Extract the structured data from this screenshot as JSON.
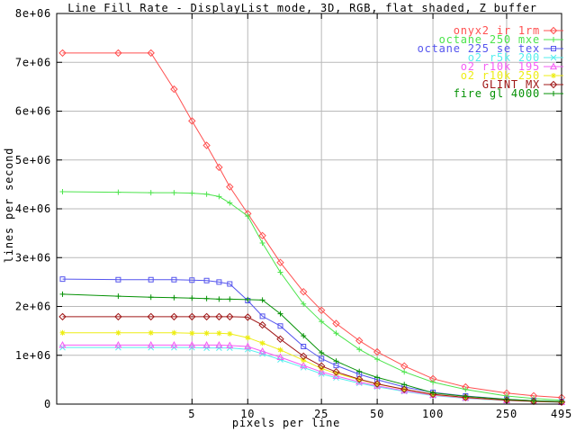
{
  "chart_data": {
    "type": "line",
    "title": "Line Fill Rate - DisplayList mode, 3D, RGB, flat shaded, Z buffer",
    "xlabel": "pixels per line",
    "ylabel": "lines per second",
    "x_scale": "log",
    "grid": true,
    "legend_position": "top-right",
    "x_range": [
      0.93,
      495
    ],
    "y_range": [
      0,
      8000000
    ],
    "x_ticks": [
      {
        "value": 5,
        "label": "5"
      },
      {
        "value": 10,
        "label": "10"
      },
      {
        "value": 25,
        "label": "25"
      },
      {
        "value": 50,
        "label": "50"
      },
      {
        "value": 100,
        "label": "100"
      },
      {
        "value": 250,
        "label": "250"
      },
      {
        "value": 495,
        "label": "495"
      }
    ],
    "y_ticks": [
      {
        "value": 0,
        "label": "0"
      },
      {
        "value": 1000000,
        "label": "1e+06"
      },
      {
        "value": 2000000,
        "label": "2e+06"
      },
      {
        "value": 3000000,
        "label": "3e+06"
      },
      {
        "value": 4000000,
        "label": "4e+06"
      },
      {
        "value": 5000000,
        "label": "5e+06"
      },
      {
        "value": 6000000,
        "label": "6e+06"
      },
      {
        "value": 7000000,
        "label": "7e+06"
      },
      {
        "value": 8000000,
        "label": "8e+06"
      }
    ],
    "x": [
      1,
      2,
      3,
      4,
      5,
      6,
      7,
      8,
      10,
      12,
      15,
      20,
      25,
      30,
      40,
      50,
      70,
      100,
      150,
      250,
      350,
      495
    ],
    "series": [
      {
        "name": "onyx2 ir 1rm",
        "color": "#ff5050",
        "marker": "diamond",
        "values": [
          7190000,
          7190000,
          7190000,
          6450000,
          5800000,
          5300000,
          4850000,
          4450000,
          3900000,
          3450000,
          2900000,
          2300000,
          1920000,
          1650000,
          1300000,
          1070000,
          780000,
          520000,
          350000,
          225000,
          170000,
          135000
        ]
      },
      {
        "name": "octane 250 mxe",
        "color": "#4ce44c",
        "marker": "plus",
        "values": [
          4350000,
          4340000,
          4330000,
          4330000,
          4320000,
          4300000,
          4250000,
          4120000,
          3850000,
          3300000,
          2700000,
          2050000,
          1690000,
          1450000,
          1120000,
          920000,
          660000,
          450000,
          300000,
          165000,
          115000,
          80000
        ]
      },
      {
        "name": "octane 225 se tex",
        "color": "#5555ee",
        "marker": "square",
        "values": [
          2560000,
          2550000,
          2550000,
          2550000,
          2540000,
          2530000,
          2500000,
          2460000,
          2120000,
          1800000,
          1600000,
          1180000,
          930000,
          790000,
          610000,
          500000,
          350000,
          240000,
          165000,
          100000,
          70000,
          50000
        ]
      },
      {
        "name": "o2 r5k 200",
        "color": "#55eeee",
        "marker": "cross",
        "values": [
          1160000,
          1160000,
          1160000,
          1160000,
          1160000,
          1150000,
          1150000,
          1150000,
          1120000,
          1030000,
          910000,
          750000,
          620000,
          540000,
          430000,
          355000,
          260000,
          175000,
          118000,
          72000,
          50000,
          36000
        ]
      },
      {
        "name": "o2 r10k 195",
        "color": "#f55cf5",
        "marker": "triangle",
        "values": [
          1210000,
          1210000,
          1210000,
          1210000,
          1210000,
          1210000,
          1210000,
          1200000,
          1180000,
          1080000,
          960000,
          790000,
          660000,
          575000,
          455000,
          375000,
          275000,
          185000,
          125000,
          76000,
          53000,
          38000
        ]
      },
      {
        "name": "o2 r10k 250",
        "color": "#eded15",
        "marker": "asterisk",
        "values": [
          1460000,
          1460000,
          1460000,
          1460000,
          1450000,
          1450000,
          1450000,
          1440000,
          1360000,
          1250000,
          1110000,
          900000,
          730000,
          630000,
          500000,
          410000,
          300000,
          195000,
          132000,
          80000,
          56000,
          42000
        ]
      },
      {
        "name": "GLINT MX",
        "color": "#a01818",
        "marker": "diamond",
        "values": [
          1790000,
          1790000,
          1790000,
          1790000,
          1790000,
          1790000,
          1790000,
          1790000,
          1780000,
          1620000,
          1330000,
          980000,
          780000,
          660000,
          510000,
          415000,
          305000,
          200000,
          136000,
          82000,
          57000,
          41000
        ]
      },
      {
        "name": "fire gl 4000",
        "color": "#059105",
        "marker": "plus",
        "values": [
          2250000,
          2210000,
          2190000,
          2180000,
          2170000,
          2160000,
          2150000,
          2150000,
          2140000,
          2130000,
          1850000,
          1400000,
          1050000,
          880000,
          670000,
          545000,
          400000,
          230000,
          158000,
          98000,
          70000,
          52000
        ]
      }
    ]
  },
  "colors": {
    "background": "#ffffff",
    "frame": "#000000",
    "grid": "#b9b9b9",
    "text": "#000000"
  }
}
